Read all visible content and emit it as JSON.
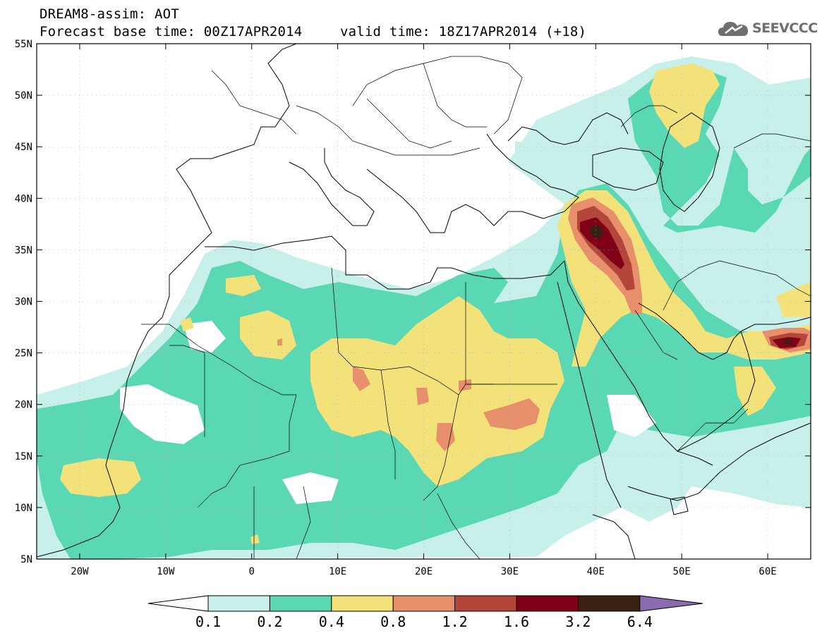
{
  "header": {
    "title": "DREAM8-assim: AOT",
    "base_time": "Forecast base time: 00Z17APR2014",
    "valid_time": "valid time: 18Z17APR2014 (+18)"
  },
  "logo": {
    "text": "SEEVCCC",
    "icon": "cloud-icon",
    "color": "#6f6f6f"
  },
  "map": {
    "lat_range": [
      5,
      55
    ],
    "lon_range": [
      -25,
      65
    ],
    "lat_ticks": [
      "55N",
      "50N",
      "45N",
      "40N",
      "35N",
      "30N",
      "25N",
      "20N",
      "15N",
      "10N",
      "5N"
    ],
    "lon_ticks": [
      "20W",
      "10W",
      "0",
      "10E",
      "20E",
      "30E",
      "40E",
      "50E",
      "60E"
    ]
  },
  "legend": {
    "colors": [
      "#ffffff",
      "#c8f0ea",
      "#5ad8b3",
      "#f3e27a",
      "#e88f6b",
      "#b4453b",
      "#800018",
      "#3a2012",
      "#8b6bb0"
    ],
    "labels": [
      "0.1",
      "0.2",
      "0.4",
      "0.8",
      "1.2",
      "1.6",
      "3.2",
      "6.4"
    ]
  }
}
